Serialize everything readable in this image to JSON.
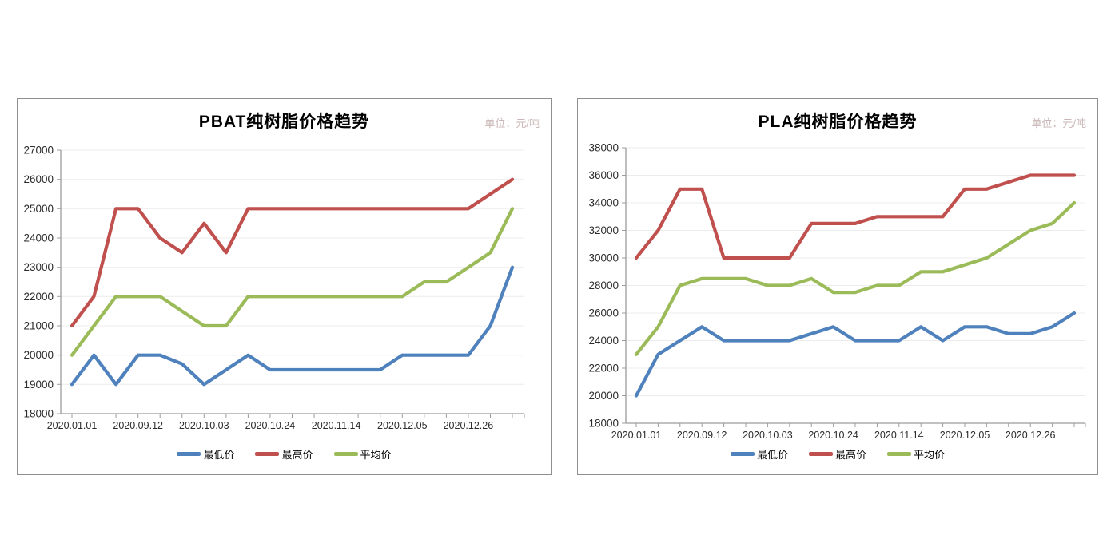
{
  "colors": {
    "blue": "#4F81BD",
    "red": "#C0504D",
    "green": "#9BBB59",
    "grid": "#ececec",
    "axis": "#9c9c9c",
    "tick_text": "#2b2b2b",
    "unit_text": "#c9b6b6",
    "border": "#8f8f8f"
  },
  "chart_data": [
    {
      "type": "line",
      "title": "PBAT纯树脂价格趋势",
      "unit_label": "单位：元/吨",
      "xlabel": "",
      "ylabel": "",
      "ylim": [
        18000,
        27000
      ],
      "ystep": 1000,
      "n_points": 21,
      "x_tick_labels": [
        "2020.01.01",
        "2020.09.12",
        "2020.10.03",
        "2020.10.24",
        "2020.11.14",
        "2020.12.05",
        "2020.12.26"
      ],
      "x_tick_label_interval": 3,
      "grid": "horizontal",
      "legend_position": "bottom",
      "series": [
        {
          "name": "最低价",
          "color_key": "blue",
          "values": [
            19000,
            20000,
            19000,
            20000,
            20000,
            19700,
            19000,
            19500,
            20000,
            19500,
            19500,
            19500,
            19500,
            19500,
            19500,
            20000,
            20000,
            20000,
            20000,
            21000,
            23000
          ]
        },
        {
          "name": "最高价",
          "color_key": "red",
          "values": [
            21000,
            22000,
            25000,
            25000,
            24000,
            23500,
            24500,
            23500,
            25000,
            25000,
            25000,
            25000,
            25000,
            25000,
            25000,
            25000,
            25000,
            25000,
            25000,
            25500,
            26000
          ]
        },
        {
          "name": "平均价",
          "color_key": "green",
          "values": [
            20000,
            21000,
            22000,
            22000,
            22000,
            21500,
            21000,
            21000,
            22000,
            22000,
            22000,
            22000,
            22000,
            22000,
            22000,
            22000,
            22500,
            22500,
            23000,
            23500,
            25000
          ]
        }
      ]
    },
    {
      "type": "line",
      "title": "PLA纯树脂价格趋势",
      "unit_label": "单位：元/吨",
      "xlabel": "",
      "ylabel": "",
      "ylim": [
        18000,
        38000
      ],
      "ystep": 2000,
      "n_points": 21,
      "x_tick_labels": [
        "2020.01.01",
        "2020.09.12",
        "2020.10.03",
        "2020.10.24",
        "2020.11.14",
        "2020.12.05",
        "2020.12.26"
      ],
      "x_tick_label_interval": 3,
      "grid": "horizontal",
      "legend_position": "bottom",
      "series": [
        {
          "name": "最低价",
          "color_key": "blue",
          "values": [
            20000,
            23000,
            24000,
            25000,
            24000,
            24000,
            24000,
            24000,
            24500,
            25000,
            24000,
            24000,
            24000,
            25000,
            24000,
            25000,
            25000,
            24500,
            24500,
            25000,
            26000
          ]
        },
        {
          "name": "最高价",
          "color_key": "red",
          "values": [
            30000,
            32000,
            35000,
            35000,
            30000,
            30000,
            30000,
            30000,
            32500,
            32500,
            32500,
            33000,
            33000,
            33000,
            33000,
            35000,
            35000,
            35500,
            36000,
            36000,
            36000
          ]
        },
        {
          "name": "平均价",
          "color_key": "green",
          "values": [
            23000,
            25000,
            28000,
            28500,
            28500,
            28500,
            28000,
            28000,
            28500,
            27500,
            27500,
            28000,
            28000,
            29000,
            29000,
            29500,
            30000,
            31000,
            32000,
            32500,
            34000
          ]
        }
      ]
    }
  ]
}
